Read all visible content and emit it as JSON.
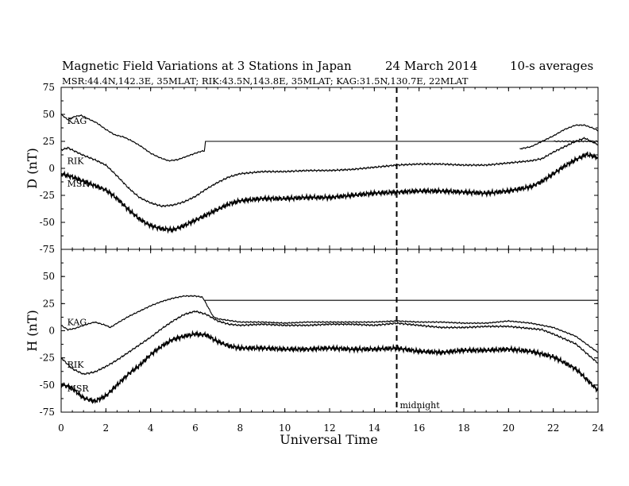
{
  "chart_data": {
    "type": "line",
    "title_parts": {
      "main": "Magnetic Field Variations at 3 Stations in Japan",
      "date": "24  March    2014",
      "avg": "10-s averages"
    },
    "subtitle": "MSR:44.4N,142.3E, 35MLAT;  RIK:43.5N,143.8E, 35MLAT;  KAG:31.5N,130.7E, 22MLAT",
    "xlabel": "Universal Time",
    "xlim": [
      0,
      24
    ],
    "xticks": [
      0,
      2,
      4,
      6,
      8,
      10,
      12,
      14,
      16,
      18,
      20,
      22,
      24
    ],
    "marker": {
      "x": 15,
      "label": "midnight"
    },
    "panels": [
      {
        "ylabel": "D (nT)",
        "ylim": [
          -75,
          75
        ],
        "yticks": [
          75,
          50,
          25,
          0,
          -25,
          -50,
          -75
        ],
        "series": [
          {
            "name": "KAG",
            "label_at": [
              0.2,
              44
            ],
            "points": [
              [
                0,
                50
              ],
              [
                0.3,
                45
              ],
              [
                0.6,
                48
              ],
              [
                0.9,
                49
              ],
              [
                1.2,
                46
              ],
              [
                1.6,
                42
              ],
              [
                2.0,
                36
              ],
              [
                2.4,
                31
              ],
              [
                2.8,
                29
              ],
              [
                3.2,
                25
              ],
              [
                3.6,
                20
              ],
              [
                4.0,
                14
              ],
              [
                4.4,
                10
              ],
              [
                4.8,
                7
              ],
              [
                5.2,
                8
              ],
              [
                5.6,
                11
              ],
              [
                6.0,
                14
              ],
              [
                6.3,
                16
              ],
              [
                6.4,
                16
              ],
              [
                6.45,
                25
              ],
              [
                22,
                25
              ],
              [
                24,
                25
              ]
            ]
          },
          {
            "name": "KAG",
            "label_at": null,
            "points": [
              [
                20.5,
                18
              ],
              [
                21,
                20
              ],
              [
                21.5,
                25
              ],
              [
                22,
                30
              ],
              [
                22.5,
                36
              ],
              [
                23,
                40
              ],
              [
                23.4,
                40
              ],
              [
                23.8,
                37
              ],
              [
                24,
                35
              ]
            ]
          },
          {
            "name": "RIK",
            "label_at": [
              0.2,
              7
            ],
            "points": [
              [
                0,
                17
              ],
              [
                0.3,
                19
              ],
              [
                0.5,
                17
              ],
              [
                1,
                12
              ],
              [
                1.5,
                8
              ],
              [
                2,
                3
              ],
              [
                2.5,
                -7
              ],
              [
                3,
                -18
              ],
              [
                3.5,
                -27
              ],
              [
                4,
                -32
              ],
              [
                4.5,
                -35
              ],
              [
                5,
                -34
              ],
              [
                5.5,
                -31
              ],
              [
                6,
                -26
              ],
              [
                6.5,
                -19
              ],
              [
                7,
                -13
              ],
              [
                7.5,
                -8
              ],
              [
                8,
                -5
              ],
              [
                9,
                -3
              ],
              [
                10,
                -3
              ],
              [
                11,
                -2
              ],
              [
                12,
                -2
              ],
              [
                13,
                -1
              ],
              [
                14,
                1
              ],
              [
                15,
                3
              ],
              [
                16,
                4
              ],
              [
                17,
                4
              ],
              [
                18,
                3
              ],
              [
                19,
                3
              ],
              [
                20,
                5
              ],
              [
                21,
                7
              ],
              [
                21.5,
                9
              ],
              [
                22,
                15
              ],
              [
                22.5,
                20
              ],
              [
                23,
                25
              ],
              [
                23.4,
                28
              ],
              [
                23.8,
                24
              ],
              [
                24,
                22
              ]
            ]
          },
          {
            "name": "MSR",
            "label_at": [
              0.2,
              -14
            ],
            "points": [
              [
                0,
                -5
              ],
              [
                0.5,
                -8
              ],
              [
                1,
                -12
              ],
              [
                1.5,
                -16
              ],
              [
                2,
                -20
              ],
              [
                2.5,
                -28
              ],
              [
                3,
                -38
              ],
              [
                3.5,
                -47
              ],
              [
                4,
                -53
              ],
              [
                4.5,
                -56
              ],
              [
                5,
                -57
              ],
              [
                5.5,
                -53
              ],
              [
                6,
                -48
              ],
              [
                6.5,
                -43
              ],
              [
                7,
                -38
              ],
              [
                7.5,
                -33
              ],
              [
                8,
                -30
              ],
              [
                9,
                -28
              ],
              [
                10,
                -28
              ],
              [
                11,
                -27
              ],
              [
                12,
                -27
              ],
              [
                13,
                -25
              ],
              [
                14,
                -23
              ],
              [
                15,
                -22
              ],
              [
                16,
                -21
              ],
              [
                17,
                -21
              ],
              [
                18,
                -22
              ],
              [
                19,
                -23
              ],
              [
                20,
                -21
              ],
              [
                21,
                -17
              ],
              [
                21.5,
                -12
              ],
              [
                22,
                -5
              ],
              [
                22.5,
                2
              ],
              [
                23,
                8
              ],
              [
                23.5,
                13
              ],
              [
                24,
                10
              ]
            ]
          }
        ]
      },
      {
        "ylabel": "H (nT)",
        "ylim": [
          -75,
          75
        ],
        "yticks": [
          75,
          50,
          25,
          0,
          -25,
          -50,
          -75
        ],
        "series": [
          {
            "name": "KAG",
            "label_at": [
              0.2,
              8
            ],
            "points": [
              [
                0,
                5
              ],
              [
                0.3,
                1
              ],
              [
                0.6,
                2
              ],
              [
                1,
                5
              ],
              [
                1.5,
                8
              ],
              [
                2,
                5
              ],
              [
                2.2,
                3
              ],
              [
                2.5,
                7
              ],
              [
                3,
                13
              ],
              [
                3.5,
                18
              ],
              [
                4,
                23
              ],
              [
                4.5,
                27
              ],
              [
                5,
                30
              ],
              [
                5.5,
                32
              ],
              [
                6,
                32
              ],
              [
                6.3,
                31
              ],
              [
                6.4,
                28
              ],
              [
                24,
                28
              ]
            ]
          },
          {
            "name": "KAG",
            "label_at": null,
            "points": [
              [
                6.4,
                28
              ],
              [
                6.8,
                13
              ],
              [
                7,
                11
              ],
              [
                8,
                8
              ],
              [
                9,
                8
              ],
              [
                10,
                7
              ],
              [
                11,
                8
              ],
              [
                12,
                8
              ],
              [
                13,
                8
              ],
              [
                14,
                8
              ],
              [
                15,
                9
              ],
              [
                16,
                8
              ],
              [
                17,
                8
              ],
              [
                18,
                7
              ],
              [
                19,
                7
              ],
              [
                20,
                9
              ],
              [
                21,
                7
              ],
              [
                22,
                3
              ],
              [
                23,
                -5
              ],
              [
                24,
                -20
              ]
            ]
          },
          {
            "name": "RIK",
            "label_at": [
              0.2,
              -31
            ],
            "points": [
              [
                0,
                -25
              ],
              [
                0.5,
                -35
              ],
              [
                1,
                -40
              ],
              [
                1.5,
                -38
              ],
              [
                2,
                -33
              ],
              [
                2.5,
                -27
              ],
              [
                3,
                -20
              ],
              [
                3.5,
                -13
              ],
              [
                4,
                -6
              ],
              [
                4.5,
                2
              ],
              [
                5,
                9
              ],
              [
                5.5,
                15
              ],
              [
                6,
                18
              ],
              [
                6.5,
                15
              ],
              [
                7,
                9
              ],
              [
                7.5,
                6
              ],
              [
                8,
                5
              ],
              [
                9,
                6
              ],
              [
                10,
                5
              ],
              [
                11,
                5
              ],
              [
                12,
                6
              ],
              [
                13,
                6
              ],
              [
                14,
                5
              ],
              [
                15,
                7
              ],
              [
                16,
                5
              ],
              [
                17,
                3
              ],
              [
                18,
                3
              ],
              [
                19,
                4
              ],
              [
                20,
                4
              ],
              [
                21,
                2
              ],
              [
                21.5,
                1
              ],
              [
                22,
                -3
              ],
              [
                23,
                -12
              ],
              [
                24,
                -30
              ]
            ]
          },
          {
            "name": "MSR",
            "label_at": [
              0.2,
              -53
            ],
            "points": [
              [
                0,
                -49
              ],
              [
                0.5,
                -53
              ],
              [
                1,
                -62
              ],
              [
                1.5,
                -65
              ],
              [
                2,
                -60
              ],
              [
                2.5,
                -50
              ],
              [
                3,
                -40
              ],
              [
                3.5,
                -32
              ],
              [
                4,
                -22
              ],
              [
                4.5,
                -14
              ],
              [
                5,
                -8
              ],
              [
                5.5,
                -5
              ],
              [
                6,
                -3
              ],
              [
                6.5,
                -4
              ],
              [
                7,
                -10
              ],
              [
                7.5,
                -14
              ],
              [
                8,
                -16
              ],
              [
                9,
                -16
              ],
              [
                10,
                -17
              ],
              [
                11,
                -17
              ],
              [
                12,
                -16
              ],
              [
                13,
                -17
              ],
              [
                14,
                -17
              ],
              [
                15,
                -16
              ],
              [
                16,
                -19
              ],
              [
                17,
                -20
              ],
              [
                18,
                -18
              ],
              [
                19,
                -18
              ],
              [
                20,
                -17
              ],
              [
                21,
                -19
              ],
              [
                22,
                -24
              ],
              [
                23,
                -35
              ],
              [
                24,
                -55
              ]
            ]
          }
        ]
      }
    ]
  }
}
